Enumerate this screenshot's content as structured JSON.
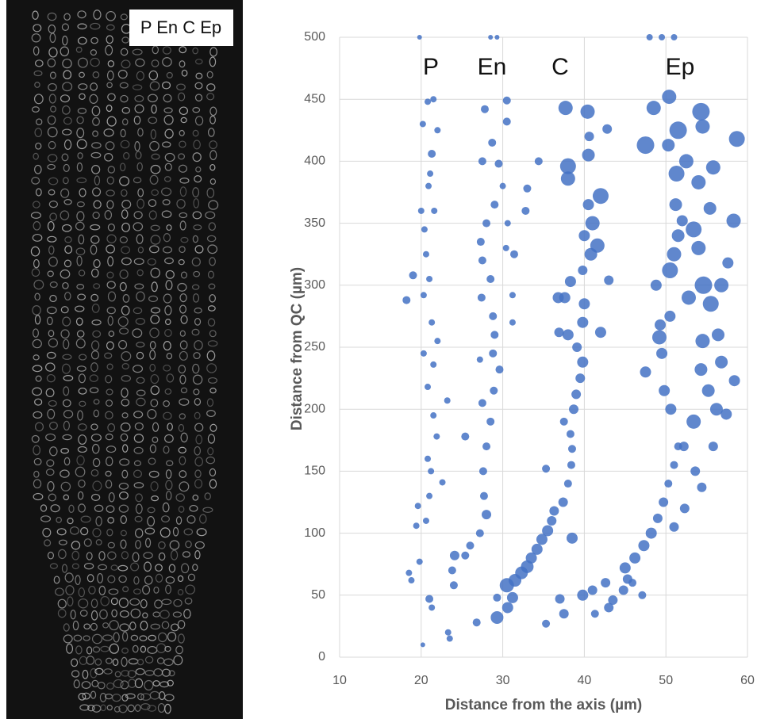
{
  "image_label": "P En C Ep",
  "chart_data": {
    "type": "bubble",
    "x_label": "Distance from the axis  (µm)",
    "y_label": "Distance from QC (µm)",
    "annotations": [
      "P",
      "En",
      "C",
      "Ep"
    ],
    "color": "#4472c4",
    "grid": true,
    "xlim": [
      10,
      60
    ],
    "xticks": [
      10,
      20,
      30,
      40,
      50,
      60
    ],
    "ylim": [
      0,
      500
    ],
    "yticks": [
      0,
      50,
      100,
      150,
      200,
      250,
      300,
      350,
      400,
      450,
      500
    ],
    "x": [
      20.2,
      23.5,
      23.3,
      21.3,
      21,
      18.8,
      18.5,
      19.8,
      19.4,
      20.6,
      19.6,
      21,
      22.6,
      21.2,
      20.8,
      21.9,
      21.5,
      23.2,
      20.8,
      21.5,
      20.3,
      22,
      21.3,
      18.2,
      20.3,
      21,
      19,
      20.6,
      20.4,
      21.6,
      20.9,
      21.1,
      21.3,
      20.2,
      21.5,
      20.8,
      22,
      20,
      24,
      23.8,
      24.1,
      25.4,
      26,
      27.2,
      28,
      27.7,
      27.6,
      28,
      25.4,
      28.5,
      27.5,
      28.9,
      29.6,
      28.8,
      27.2,
      29,
      28.8,
      27.4,
      28.5,
      27.5,
      30.4,
      27.3,
      31.4,
      30.6,
      28,
      29,
      30,
      27.5,
      29.5,
      28.7,
      27.8,
      30.5,
      30.5,
      33,
      34.4,
      32.8,
      31.2,
      31.2,
      29.3,
      26.8,
      29.3,
      35.3,
      30.6,
      31.2,
      30.5,
      31.5,
      32.3,
      33,
      33.5,
      34.2,
      34.8,
      35.5,
      36,
      36.3,
      37.4,
      35.3,
      38,
      38.4,
      38.5,
      38.3,
      38.7,
      39,
      39.5,
      39.8,
      39.1,
      38,
      39.8,
      40,
      37.6,
      38.3,
      39.8,
      40.8,
      41.6,
      40,
      41,
      40.5,
      42,
      38,
      38,
      40.5,
      40.6,
      40.4,
      37.7,
      42.8,
      43,
      42,
      36.8,
      36.9,
      37.5,
      38.5,
      37,
      37.5,
      39.8,
      41,
      42.6,
      41.3,
      43.5,
      44.8,
      45.3,
      45,
      46.2,
      47.3,
      48.2,
      49,
      49.7,
      50.3,
      51,
      51.5,
      50.6,
      49.8,
      47.5,
      49.5,
      49.2,
      49.3,
      50.5,
      48.8,
      50.5,
      51,
      51.5,
      52,
      51.2,
      51.3,
      52.5,
      47.5,
      50.3,
      51.5,
      50.4,
      48.5,
      54.3,
      54.5,
      55.8,
      54,
      55.4,
      53.4,
      54,
      54.6,
      55.5,
      56.8,
      57.6,
      58.3,
      58.7,
      56.4,
      54.3,
      55.2,
      56.2,
      57.4,
      58.4,
      53.4,
      55.8,
      53.6,
      52.3,
      51,
      54.4,
      47.1,
      45.9,
      43,
      52.2,
      56.8,
      54.5,
      52.8,
      19.8,
      28.5,
      29.3,
      48,
      49.5,
      51
    ],
    "y": [
      10,
      15,
      20,
      40,
      47,
      62,
      68,
      77,
      106,
      110,
      122,
      130,
      141,
      150,
      160,
      178,
      195,
      207,
      218,
      236,
      245,
      255,
      270,
      288,
      292,
      305,
      308,
      325,
      345,
      360,
      380,
      390,
      406,
      430,
      450,
      448,
      425,
      360,
      58,
      70,
      82,
      82,
      90,
      100,
      115,
      130,
      150,
      170,
      178,
      190,
      205,
      215,
      232,
      245,
      240,
      260,
      275,
      290,
      305,
      320,
      330,
      335,
      325,
      350,
      350,
      365,
      380,
      400,
      398,
      415,
      442,
      449,
      432,
      378,
      400,
      360,
      292,
      270,
      48,
      28,
      32,
      27,
      40,
      48,
      58,
      62,
      68,
      73,
      80,
      87,
      95,
      102,
      110,
      118,
      125,
      152,
      140,
      155,
      168,
      180,
      200,
      212,
      225,
      238,
      250,
      260,
      270,
      285,
      290,
      303,
      312,
      325,
      332,
      340,
      350,
      365,
      372,
      386,
      396,
      405,
      420,
      440,
      443,
      426,
      304,
      262,
      290,
      262,
      190,
      96,
      47,
      35,
      50,
      54,
      60,
      35,
      46,
      54,
      63,
      72,
      80,
      90,
      100,
      112,
      125,
      140,
      155,
      170,
      200,
      215,
      230,
      245,
      258,
      268,
      275,
      300,
      312,
      325,
      340,
      352,
      365,
      390,
      400,
      413,
      413,
      425,
      452,
      443,
      440,
      428,
      395,
      383,
      362,
      345,
      330,
      300,
      285,
      300,
      318,
      352,
      418,
      260,
      232,
      215,
      200,
      196,
      223,
      190,
      170,
      150,
      120,
      105,
      137,
      50,
      60,
      40,
      170,
      238,
      255,
      290,
      500,
      500,
      500,
      500,
      500,
      500
    ],
    "sizes": [
      3,
      4,
      4,
      4,
      5,
      4,
      4,
      4,
      4,
      4,
      4,
      4,
      4,
      4,
      4,
      4,
      4,
      4,
      4,
      4,
      4,
      4,
      4,
      5,
      4,
      4,
      5,
      4,
      4,
      4,
      4,
      4,
      5,
      4,
      4,
      4,
      4,
      4,
      5,
      5,
      6,
      5,
      5,
      5,
      6,
      5,
      5,
      5,
      5,
      5,
      5,
      5,
      5,
      5,
      4,
      5,
      5,
      5,
      5,
      5,
      4,
      5,
      5,
      4,
      5,
      5,
      4,
      5,
      5,
      5,
      5,
      5,
      5,
      5,
      5,
      5,
      4,
      4,
      5,
      5,
      8,
      5,
      7,
      7,
      9,
      8,
      8,
      8,
      7,
      7,
      7,
      7,
      6,
      6,
      6,
      5,
      5,
      5,
      5,
      5,
      6,
      6,
      6,
      7,
      6,
      7,
      7,
      7,
      7,
      7,
      6,
      8,
      9,
      7,
      9,
      7,
      10,
      9,
      10,
      8,
      6,
      9,
      9,
      6,
      6,
      7,
      7,
      6,
      5,
      7,
      6,
      6,
      7,
      6,
      6,
      5,
      6,
      6,
      6,
      7,
      7,
      7,
      7,
      6,
      6,
      5,
      5,
      5,
      7,
      7,
      7,
      7,
      9,
      7,
      7,
      7,
      10,
      9,
      8,
      7,
      8,
      10,
      9,
      11,
      8,
      11,
      9,
      9,
      11,
      9,
      9,
      9,
      8,
      10,
      9,
      11,
      10,
      9,
      7,
      9,
      10,
      8,
      8,
      8,
      8,
      7,
      7,
      9,
      6,
      6,
      6,
      6,
      6,
      5,
      5,
      6,
      6,
      8,
      9,
      9,
      3,
      3,
      3,
      4,
      4,
      4
    ]
  }
}
